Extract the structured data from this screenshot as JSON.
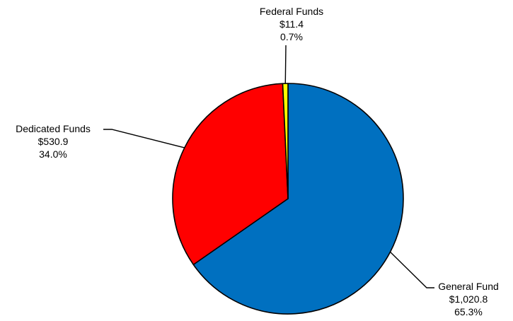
{
  "chart_data": {
    "type": "pie",
    "slices": [
      {
        "name": "General Fund",
        "value": 1020.8,
        "value_label": "$1,020.8",
        "percent_label": "65.3%",
        "color": "#0070C0"
      },
      {
        "name": "Dedicated Funds",
        "value": 530.9,
        "value_label": "$530.9",
        "percent_label": "34.0%",
        "color": "#FF0000"
      },
      {
        "name": "Federal Funds",
        "value": 11.4,
        "value_label": "$11.4",
        "percent_label": "0.7%",
        "color": "#FFFF00"
      }
    ],
    "start_angle_deg": 0,
    "direction": "clockwise",
    "legend": "none"
  }
}
